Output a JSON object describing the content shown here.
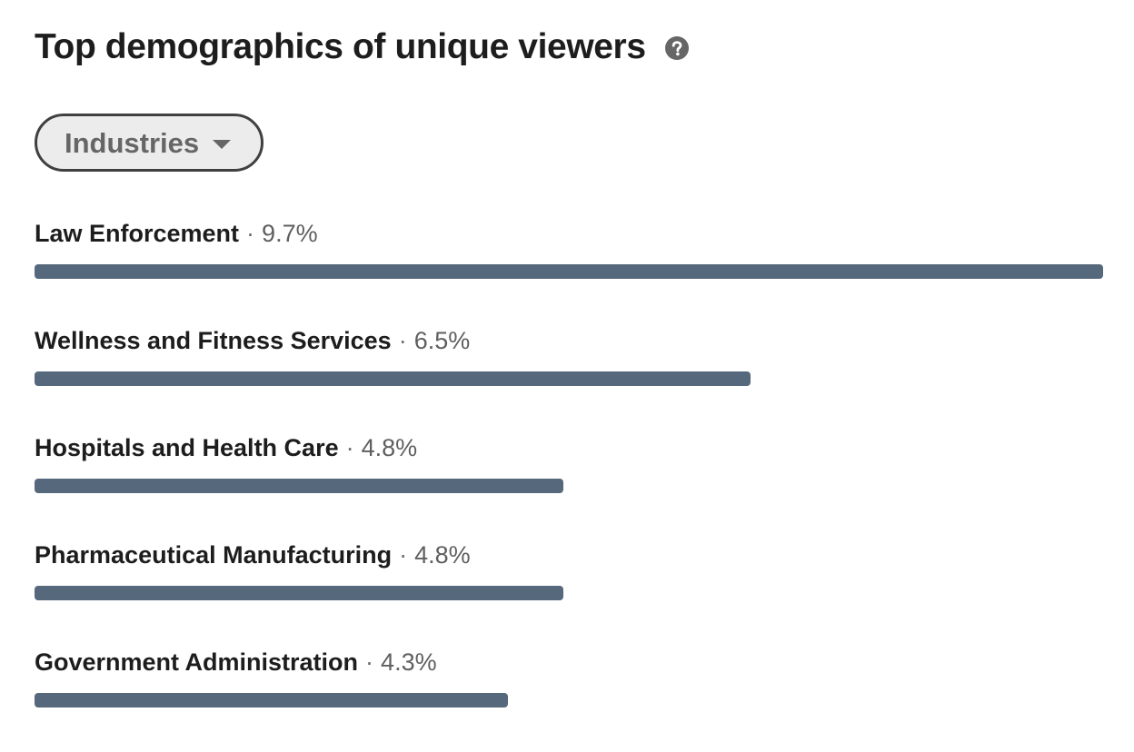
{
  "header": {
    "title": "Top demographics of unique viewers",
    "help_icon": "help-circle-icon"
  },
  "filter": {
    "selected": "Industries",
    "caret_icon": "caret-down-icon"
  },
  "colors": {
    "bar": "#56687b",
    "title": "#1d1d1d",
    "muted": "#5f5f5f"
  },
  "separator": "·",
  "demographics": [
    {
      "name": "Law Enforcement",
      "value": "9.7%",
      "percent": 9.7
    },
    {
      "name": "Wellness and Fitness Services",
      "value": "6.5%",
      "percent": 6.5
    },
    {
      "name": "Hospitals and Health Care",
      "value": "4.8%",
      "percent": 4.8
    },
    {
      "name": "Pharmaceutical Manufacturing",
      "value": "4.8%",
      "percent": 4.8
    },
    {
      "name": "Government Administration",
      "value": "4.3%",
      "percent": 4.3
    }
  ]
}
